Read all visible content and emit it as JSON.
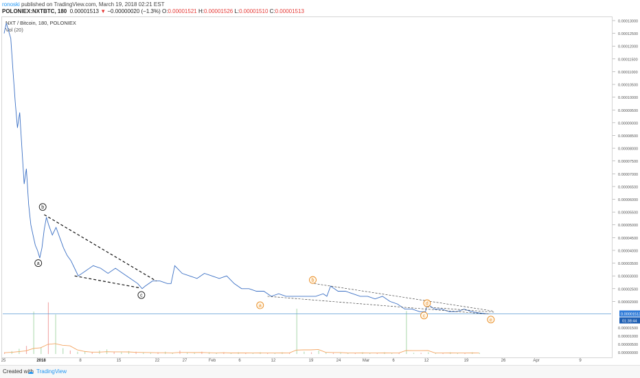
{
  "header": {
    "user": "ronoski",
    "published": "published on TradingView.com, March 19, 2018 02:21 EST",
    "symbol": "POLONIEX:NXTBTC, 180",
    "last": "0.00001513",
    "change_arrow": "▼",
    "change": "−0.00000020 (−1.3%)",
    "o_label": "O:",
    "o": "0.00001521",
    "h_label": "H:",
    "h": "0.00001526",
    "l_label": "L:",
    "l": "0.00001510",
    "c_label": "C:",
    "c": "0.00001513"
  },
  "legend": {
    "title": "NXT / Bitcoin, 180, POLONIEX",
    "volume": "Vol (20)"
  },
  "footer": {
    "created_with": "Created with",
    "brand": "TradingView"
  },
  "colors": {
    "price_line": "#3a6fc4",
    "annotation_dark": "#111111",
    "annotation_orange": "#e8891d",
    "volume_bar": "#a5d6a7",
    "volume_bar_red": "#ef9a9a",
    "volume_ma": "#f4a460",
    "last_price_line": "#5b9bd5",
    "price_badge": "#2f7bd8"
  },
  "chart_data": {
    "type": "line",
    "title": "NXT / Bitcoin, 180, POLONIEX",
    "x_tick_labels": [
      "25",
      "2018",
      "8",
      "15",
      "22",
      "27",
      "Feb",
      "6",
      "12",
      "19",
      "24",
      "Mar",
      "6",
      "12",
      "19",
      "26",
      "Apr",
      "9"
    ],
    "y_tick_labels": [
      "0.00013000",
      "0.00012500",
      "0.00012000",
      "0.00011500",
      "0.00011000",
      "0.00010500",
      "0.00010000",
      "0.00009500",
      "0.00009000",
      "0.00008500",
      "0.00008000",
      "0.00007500",
      "0.00007000",
      "0.00006500",
      "0.00006000",
      "0.00005500",
      "0.00005000",
      "0.00004500",
      "0.00004000",
      "0.00003500",
      "0.00003000",
      "0.00002500",
      "0.00002000"
    ],
    "y_tick_values": [
      0.00013,
      0.000125,
      0.00012,
      0.000115,
      0.00011,
      0.000105,
      0.0001,
      9.5e-05,
      9e-05,
      8.5e-05,
      8e-05,
      7.5e-05,
      7e-05,
      6.5e-05,
      6e-05,
      5.5e-05,
      5e-05,
      4.5e-05,
      4e-05,
      3.5e-05,
      3e-05,
      2.5e-05,
      2e-05
    ],
    "ylim": [
      1.5e-05,
      0.00013
    ],
    "last_price_label": "0.00001513",
    "countdown_label": "01:38:44",
    "volume_tick_labels": [
      "0.00001500",
      "0.00001000",
      "0.00000500",
      "0.00000000"
    ],
    "series": [
      {
        "name": "NXT / Bitcoin",
        "points": [
          [
            0,
            0.000125
          ],
          [
            0.3,
            0.000129
          ],
          [
            0.6,
            0.000126
          ],
          [
            0.9,
            0.000123
          ],
          [
            1.2,
            0.00011
          ],
          [
            1.5,
            9.8e-05
          ],
          [
            1.8,
            8.8e-05
          ],
          [
            2.1,
            9.4e-05
          ],
          [
            2.4,
            8e-05
          ],
          [
            2.7,
            6.6e-05
          ],
          [
            3.0,
            7.2e-05
          ],
          [
            3.3,
            5.8e-05
          ],
          [
            3.6,
            5e-05
          ],
          [
            3.9,
            4.6e-05
          ],
          [
            4.2,
            4.2e-05
          ],
          [
            4.5,
            4e-05
          ],
          [
            4.8,
            3.7e-05
          ],
          [
            5.1,
            4.1e-05
          ],
          [
            5.4,
            4.8e-05
          ],
          [
            5.7,
            5.3e-05
          ],
          [
            6.0,
            5e-05
          ],
          [
            6.5,
            4.6e-05
          ],
          [
            7.0,
            4.9e-05
          ],
          [
            7.5,
            4.5e-05
          ],
          [
            8.0,
            4.1e-05
          ],
          [
            8.5,
            3.8e-05
          ],
          [
            9.0,
            3.6e-05
          ],
          [
            9.5,
            3.3e-05
          ],
          [
            10.0,
            3e-05
          ],
          [
            11.0,
            3.2e-05
          ],
          [
            12.0,
            3.4e-05
          ],
          [
            13.0,
            3.3e-05
          ],
          [
            14.0,
            3.1e-05
          ],
          [
            15.0,
            3.3e-05
          ],
          [
            16.0,
            3.1e-05
          ],
          [
            17.0,
            2.9e-05
          ],
          [
            18.0,
            2.7e-05
          ],
          [
            18.6,
            2.5e-05
          ],
          [
            19.0,
            2.6e-05
          ],
          [
            20.0,
            2.8e-05
          ],
          [
            21.0,
            2.8e-05
          ],
          [
            22.0,
            2.7e-05
          ],
          [
            22.5,
            2.7e-05
          ],
          [
            23.0,
            3.4e-05
          ],
          [
            24.0,
            3.1e-05
          ],
          [
            25.0,
            3e-05
          ],
          [
            26.0,
            2.9e-05
          ],
          [
            27.0,
            3.1e-05
          ],
          [
            28.0,
            3e-05
          ],
          [
            29.0,
            2.9e-05
          ],
          [
            30.0,
            3e-05
          ],
          [
            31.0,
            2.7e-05
          ],
          [
            32.0,
            2.5e-05
          ],
          [
            33.0,
            2.5e-05
          ],
          [
            34.0,
            2.4e-05
          ],
          [
            35.0,
            2.4e-05
          ],
          [
            36.0,
            2.2e-05
          ],
          [
            37.0,
            2.3e-05
          ],
          [
            38.0,
            2.2e-05
          ],
          [
            39.0,
            2.2e-05
          ],
          [
            40.0,
            2.2e-05
          ],
          [
            41.0,
            2.2e-05
          ],
          [
            42.0,
            2.2e-05
          ],
          [
            43.0,
            2.3e-05
          ],
          [
            43.5,
            2.2e-05
          ],
          [
            44.0,
            2.6e-05
          ],
          [
            44.5,
            2.5e-05
          ],
          [
            45.0,
            2.4e-05
          ],
          [
            46.0,
            2.4e-05
          ],
          [
            47.0,
            2.3e-05
          ],
          [
            48.0,
            2.2e-05
          ],
          [
            49.0,
            2.2e-05
          ],
          [
            50.0,
            2.1e-05
          ],
          [
            51.0,
            2.2e-05
          ],
          [
            52.0,
            2e-05
          ],
          [
            53.0,
            1.9e-05
          ],
          [
            54.0,
            1.7e-05
          ],
          [
            55.0,
            1.7e-05
          ],
          [
            56.0,
            1.6e-05
          ],
          [
            56.8,
            1.6e-05
          ],
          [
            57.0,
            1.9e-05
          ],
          [
            57.5,
            1.8e-05
          ],
          [
            58.0,
            1.7e-05
          ],
          [
            59.0,
            1.7e-05
          ],
          [
            60.0,
            1.6e-05
          ],
          [
            61.0,
            1.6e-05
          ],
          [
            62.0,
            1.7e-05
          ],
          [
            63.0,
            1.6e-05
          ],
          [
            64.0,
            1.55e-05
          ],
          [
            65.0,
            1.513e-05
          ]
        ]
      }
    ],
    "annotations": [
      {
        "text": "a",
        "x": 4.6,
        "y": 3.5e-05,
        "color": "dark"
      },
      {
        "text": "b",
        "x": 5.2,
        "y": 5.7e-05,
        "color": "dark"
      },
      {
        "text": "c",
        "x": 18.5,
        "y": 2.25e-05,
        "color": "dark"
      },
      {
        "text": "a",
        "x": 34.5,
        "y": 1.85e-05,
        "color": "orange"
      },
      {
        "text": "b",
        "x": 41.6,
        "y": 2.84e-05,
        "color": "orange"
      },
      {
        "text": "c",
        "x": 56.6,
        "y": 1.45e-05,
        "color": "orange"
      },
      {
        "text": "d",
        "x": 57.0,
        "y": 1.93e-05,
        "color": "orange"
      },
      {
        "text": "e",
        "x": 65.6,
        "y": 1.29e-05,
        "color": "orange"
      }
    ],
    "trendlines": [
      {
        "from": [
          5.4,
          5.4e-05
        ],
        "to": [
          20.5,
          2.8e-05
        ],
        "style": "dark"
      },
      {
        "from": [
          9.5,
          3e-05
        ],
        "to": [
          18.3,
          2.53e-05
        ],
        "style": "dark"
      },
      {
        "from": [
          41.8,
          2.7e-05
        ],
        "to": [
          66,
          1.62e-05
        ],
        "style": "light"
      },
      {
        "from": [
          35.5,
          2.2e-05
        ],
        "to": [
          65.5,
          1.5e-05
        ],
        "style": "light"
      },
      {
        "from": [
          57.0,
          1.78e-05
        ],
        "to": [
          66,
          1.58e-05
        ],
        "style": "light"
      }
    ],
    "volume": [
      0.3,
      0.5,
      0.9,
      1.4,
      2.6,
      1.2,
      4.2,
      2.1,
      1.0,
      0.6,
      0.4,
      0.5,
      0.3,
      0.6,
      0.8,
      0.4,
      0.3,
      0.5,
      0.4,
      0.3,
      0.2,
      0.3,
      0.4,
      0.2,
      0.6,
      0.3,
      0.2,
      0.4,
      0.3,
      0.2,
      0.3,
      0.2,
      0.3,
      0.2,
      0.2,
      0.3,
      0.2,
      0.2,
      0.3,
      0.2,
      3.1,
      0.4,
      0.3,
      0.6,
      0.3,
      0.2,
      0.3,
      0.2,
      0.2,
      0.3,
      0.2,
      0.2,
      0.3,
      0.2,
      0.2,
      2.7,
      0.2,
      0.2,
      0.3,
      0.2,
      0.2,
      0.3,
      0.2,
      0.2,
      0.3,
      0.2
    ]
  }
}
